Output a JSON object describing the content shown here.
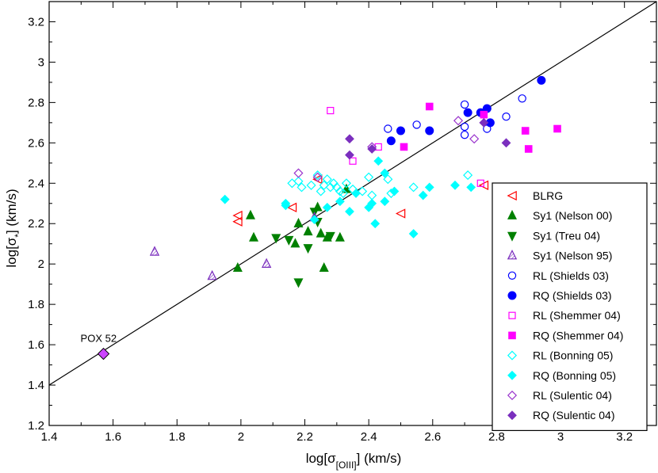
{
  "chart_data": {
    "type": "scatter",
    "title": "",
    "xlabel": "log[σ_[OIII]] (km/s)",
    "xlabel_parts": {
      "pre": "log[σ",
      "sub": "[OIII]",
      "post": "] (km/s)"
    },
    "ylabel": "log[σ_*] (km/s)",
    "ylabel_parts": {
      "pre": "log[σ",
      "sub": "*",
      "post": "] (km/s)"
    },
    "xlim": [
      1.4,
      3.3
    ],
    "ylim": [
      1.2,
      3.3
    ],
    "xticks": [
      "1.4",
      "1.6",
      "1.8",
      "2",
      "2.2",
      "2.4",
      "2.6",
      "2.8",
      "3",
      "3.2"
    ],
    "yticks": [
      "1.2",
      "1.4",
      "1.6",
      "1.8",
      "2",
      "2.2",
      "2.4",
      "2.6",
      "2.8",
      "3",
      "3.2"
    ],
    "reference_line": {
      "label": "one-to-one",
      "x": [
        1.4,
        3.3
      ],
      "y": [
        1.4,
        3.3
      ]
    },
    "annotation": {
      "text": "POX 52",
      "x": 1.57,
      "y": 1.555
    },
    "legend_position": "lower-right",
    "series": [
      {
        "name": "BLRG",
        "marker": "tri-left-open",
        "color": "#ff0000",
        "points": [
          [
            1.99,
            2.24
          ],
          [
            1.99,
            2.21
          ],
          [
            2.16,
            2.28
          ],
          [
            2.24,
            2.42
          ],
          [
            2.5,
            2.25
          ],
          [
            2.76,
            2.39
          ]
        ]
      },
      {
        "name": "Sy1 (Nelson 00)",
        "marker": "tri-up-filled",
        "color": "#008000",
        "points": [
          [
            1.99,
            1.98
          ],
          [
            2.03,
            2.24
          ],
          [
            2.04,
            2.13
          ],
          [
            2.17,
            2.1
          ],
          [
            2.18,
            2.2
          ],
          [
            2.21,
            2.16
          ],
          [
            2.24,
            2.28
          ],
          [
            2.25,
            2.15
          ],
          [
            2.27,
            2.13
          ],
          [
            2.31,
            2.13
          ],
          [
            2.26,
            1.98
          ],
          [
            2.33,
            2.37
          ]
        ]
      },
      {
        "name": "Sy1 (Treu 04)",
        "marker": "tri-down-filled",
        "color": "#008000",
        "points": [
          [
            2.11,
            2.13
          ],
          [
            2.15,
            2.12
          ],
          [
            2.18,
            1.91
          ],
          [
            2.21,
            2.08
          ],
          [
            2.23,
            2.26
          ],
          [
            2.24,
            2.21
          ],
          [
            2.28,
            2.14
          ]
        ]
      },
      {
        "name": "Sy1 (Nelson 95)",
        "marker": "tri-up-hatched",
        "color": "#7b2fbe",
        "points": [
          [
            1.73,
            2.06
          ],
          [
            1.91,
            1.94
          ],
          [
            2.08,
            2.0
          ],
          [
            2.23,
            2.23
          ]
        ]
      },
      {
        "name": "RL (Shields 03)",
        "marker": "circle-open",
        "color": "#0000ff",
        "points": [
          [
            2.46,
            2.67
          ],
          [
            2.55,
            2.69
          ],
          [
            2.7,
            2.79
          ],
          [
            2.7,
            2.68
          ],
          [
            2.7,
            2.64
          ],
          [
            2.77,
            2.67
          ],
          [
            2.83,
            2.73
          ],
          [
            2.88,
            2.82
          ]
        ]
      },
      {
        "name": "RQ  (Shields 03)",
        "marker": "circle-filled",
        "color": "#0000ff",
        "points": [
          [
            2.47,
            2.61
          ],
          [
            2.5,
            2.66
          ],
          [
            2.59,
            2.66
          ],
          [
            2.71,
            2.75
          ],
          [
            2.75,
            2.75
          ],
          [
            2.77,
            2.77
          ],
          [
            2.78,
            2.7
          ],
          [
            2.94,
            2.91
          ]
        ]
      },
      {
        "name": "RL (Shemmer 04)",
        "marker": "square-open",
        "color": "#ff00ff",
        "points": [
          [
            2.28,
            2.76
          ],
          [
            2.35,
            2.51
          ],
          [
            2.43,
            2.58
          ],
          [
            2.75,
            2.4
          ]
        ]
      },
      {
        "name": "RQ (Shemmer 04)",
        "marker": "square-filled",
        "color": "#ff00ff",
        "points": [
          [
            2.51,
            2.58
          ],
          [
            2.59,
            2.78
          ],
          [
            2.76,
            2.74
          ],
          [
            2.89,
            2.66
          ],
          [
            2.9,
            2.57
          ],
          [
            2.99,
            2.67
          ]
        ]
      },
      {
        "name": "RL (Bonning 05)",
        "marker": "diamond-open",
        "color": "#00ffff",
        "points": [
          [
            2.16,
            2.4
          ],
          [
            2.18,
            2.41
          ],
          [
            2.19,
            2.38
          ],
          [
            2.22,
            2.39
          ],
          [
            2.24,
            2.44
          ],
          [
            2.25,
            2.36
          ],
          [
            2.26,
            2.39
          ],
          [
            2.27,
            2.42
          ],
          [
            2.28,
            2.38
          ],
          [
            2.29,
            2.4
          ],
          [
            2.3,
            2.38
          ],
          [
            2.31,
            2.36
          ],
          [
            2.32,
            2.35
          ],
          [
            2.33,
            2.4
          ],
          [
            2.35,
            2.37
          ],
          [
            2.38,
            2.36
          ],
          [
            2.4,
            2.43
          ],
          [
            2.41,
            2.34
          ],
          [
            2.46,
            2.42
          ],
          [
            2.47,
            2.35
          ],
          [
            2.54,
            2.38
          ],
          [
            2.71,
            2.44
          ]
        ]
      },
      {
        "name": "RQ (Bonning 05)",
        "marker": "diamond-filled",
        "color": "#00ffff",
        "points": [
          [
            1.95,
            2.32
          ],
          [
            2.14,
            2.3
          ],
          [
            2.14,
            2.29
          ],
          [
            2.23,
            2.22
          ],
          [
            2.27,
            2.28
          ],
          [
            2.31,
            2.31
          ],
          [
            2.34,
            2.26
          ],
          [
            2.36,
            2.35
          ],
          [
            2.4,
            2.28
          ],
          [
            2.41,
            2.3
          ],
          [
            2.42,
            2.2
          ],
          [
            2.43,
            2.51
          ],
          [
            2.45,
            2.31
          ],
          [
            2.45,
            2.45
          ],
          [
            2.48,
            2.36
          ],
          [
            2.54,
            2.15
          ],
          [
            2.57,
            2.34
          ],
          [
            2.59,
            2.38
          ],
          [
            2.67,
            2.39
          ],
          [
            2.72,
            2.38
          ]
        ]
      },
      {
        "name": "RL (Sulentic 04)",
        "marker": "diamond-open",
        "color": "#9932cc",
        "points": [
          [
            2.18,
            2.45
          ],
          [
            2.24,
            2.43
          ],
          [
            2.41,
            2.58
          ],
          [
            2.68,
            2.71
          ],
          [
            2.73,
            2.62
          ]
        ]
      },
      {
        "name": "RQ (Sulentic 04)",
        "marker": "diamond-filled",
        "color": "#7b2fbe",
        "points": [
          [
            2.34,
            2.62
          ],
          [
            2.34,
            2.54
          ],
          [
            2.41,
            2.57
          ],
          [
            2.76,
            2.7
          ],
          [
            2.83,
            2.6
          ]
        ]
      },
      {
        "name": "POX 52",
        "marker": "diamond-filled-large",
        "color": "#cc44ff",
        "in_legend": false,
        "points": [
          [
            1.57,
            1.555
          ]
        ]
      }
    ]
  }
}
